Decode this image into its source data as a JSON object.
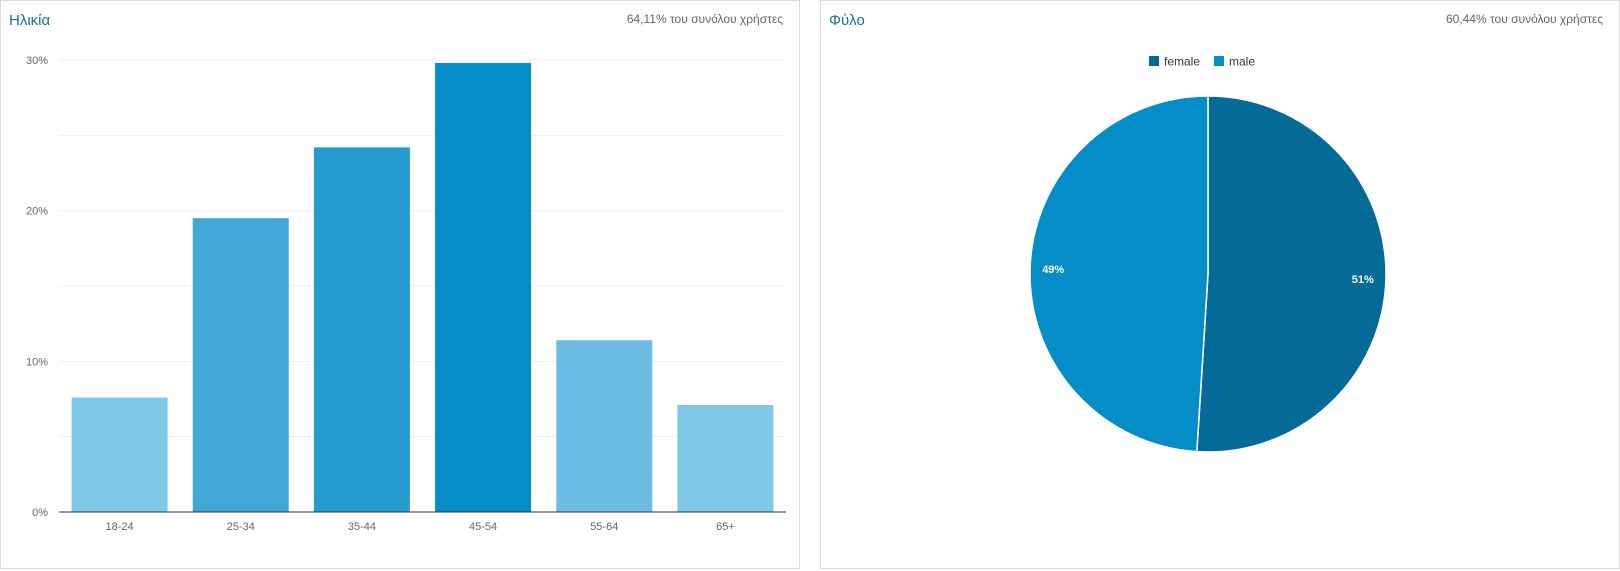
{
  "age_panel": {
    "title": "Ηλικία",
    "note": "64,11% του συνόλου χρήστες"
  },
  "gender_panel": {
    "title": "Φύλο",
    "note": "60,44% του συνόλου χρήστες"
  },
  "colors": {
    "female": "#046b99",
    "male": "#058dc7",
    "grid": "#efefef",
    "axis": "#333333"
  },
  "chart_data": [
    {
      "type": "bar",
      "categories": [
        "18-24",
        "25-34",
        "35-44",
        "45-54",
        "55-64",
        "65+"
      ],
      "values": [
        7.6,
        19.5,
        24.2,
        29.8,
        11.4,
        7.1
      ],
      "bar_colors": [
        "#80c8e8",
        "#40a8d8",
        "#259cd0",
        "#058dc7",
        "#6bbde3",
        "#80c8e8"
      ],
      "ylim": [
        0,
        30
      ],
      "yticks": [
        0,
        10,
        20,
        30
      ],
      "ytick_labels": [
        "0%",
        "10%",
        "20%",
        "30%"
      ],
      "grid": true,
      "title": "Ηλικία"
    },
    {
      "type": "pie",
      "labels": [
        "female",
        "male"
      ],
      "values": [
        51,
        49
      ],
      "slice_labels": [
        "51%",
        "49%"
      ],
      "colors": [
        "#046b99",
        "#058dc7"
      ],
      "legend_position": "top",
      "title": "Φύλο"
    }
  ]
}
